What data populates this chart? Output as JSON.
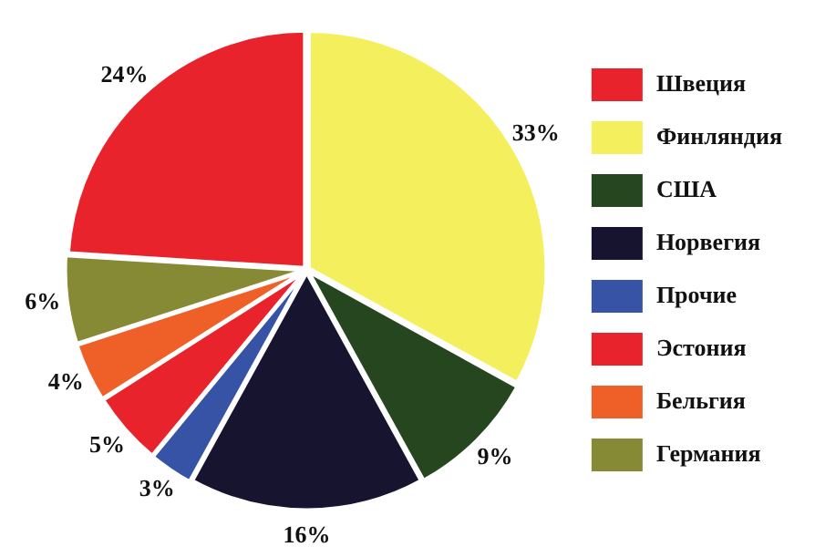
{
  "chart_data": {
    "type": "pie",
    "categories": [
      "Швеция",
      "Финляндия",
      "США",
      "Норвегия",
      "Прочие",
      "Эстония",
      "Бельгия",
      "Германия"
    ],
    "values": [
      24,
      33,
      9,
      16,
      3,
      5,
      4,
      6
    ],
    "colors": [
      "#e8232b",
      "#f4ef5c",
      "#26461f",
      "#16142e",
      "#3653a6",
      "#e8232b",
      "#ef5f28",
      "#878a34"
    ],
    "value_labels": [
      "24%",
      "33%",
      "9%",
      "16%",
      "3%",
      "5%",
      "4%",
      "6%"
    ],
    "legend": "right"
  }
}
